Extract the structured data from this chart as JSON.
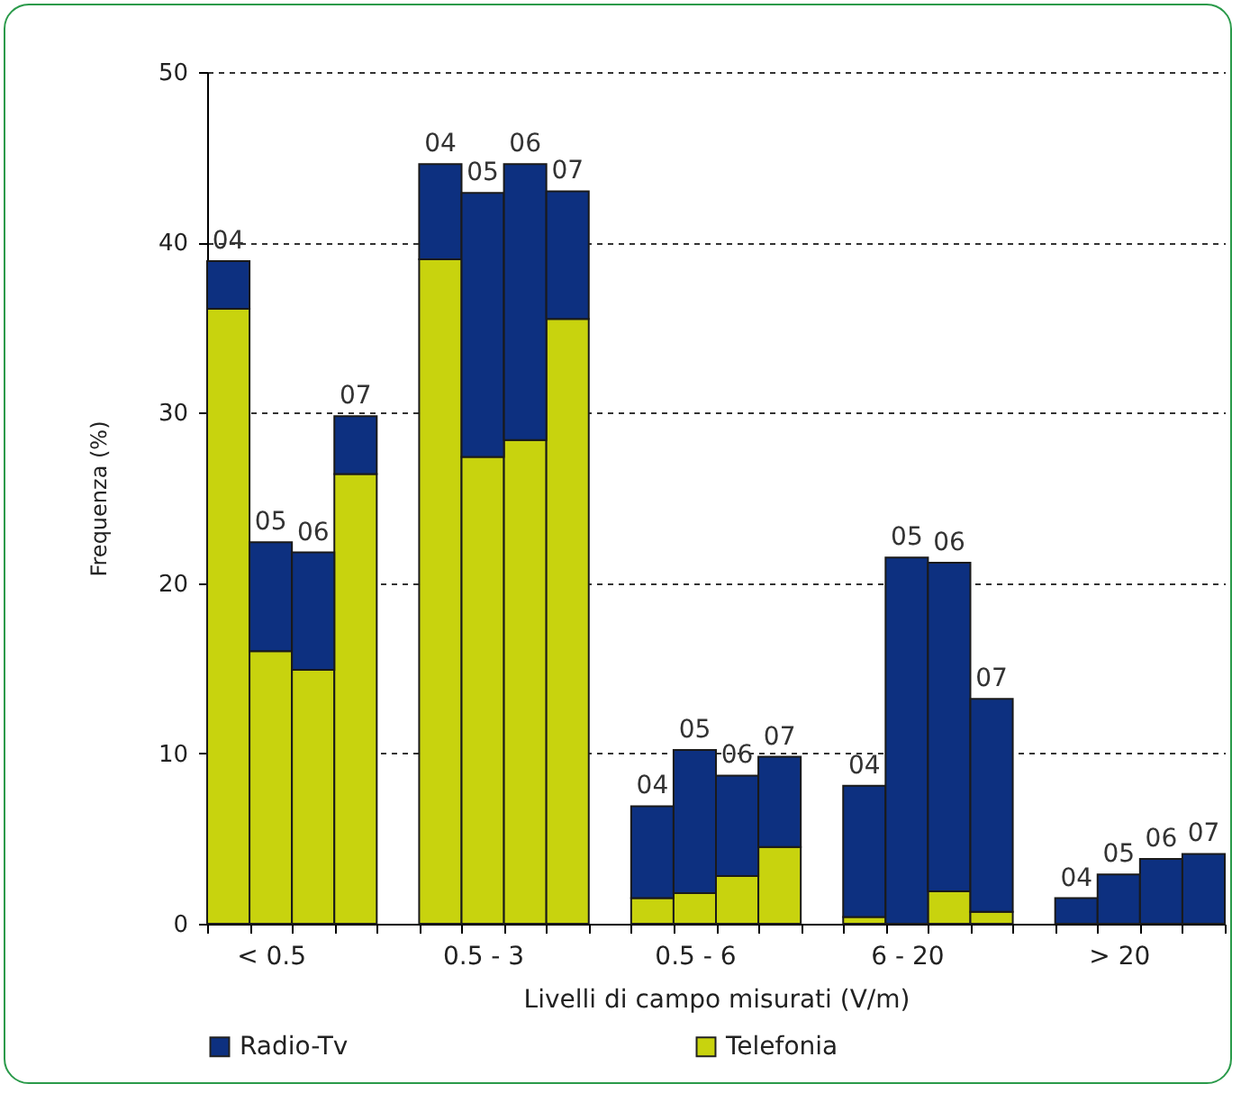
{
  "chart_data": {
    "type": "bar",
    "stacked": true,
    "xlabel": "Livelli di campo misurati (V/m)",
    "ylabel": "Frequenza (%)",
    "categories": [
      null,
      "< 0.5",
      null,
      null,
      null,
      null,
      "0.5  -  3",
      null,
      null,
      null,
      null,
      "0.5  -  6",
      null,
      null,
      null,
      null,
      "6   -  20",
      null,
      null,
      null,
      null,
      "> 20",
      null,
      null
    ],
    "series": [
      {
        "name": "Telefonia",
        "color": "#c8d30e",
        "values": [
          36.1,
          16.0,
          14.9,
          26.4,
          null,
          39.0,
          27.4,
          28.4,
          35.5,
          null,
          1.5,
          1.8,
          2.8,
          4.5,
          null,
          0.4,
          0,
          1.9,
          0.7,
          null,
          0,
          0,
          0,
          0
        ]
      },
      {
        "name": "Radio-Tv",
        "color": "#0d3080",
        "values": [
          2.8,
          6.4,
          6.9,
          3.4,
          null,
          5.6,
          15.5,
          16.2,
          7.5,
          null,
          5.4,
          8.4,
          5.9,
          5.3,
          null,
          7.7,
          21.5,
          19.3,
          12.5,
          null,
          1.5,
          2.9,
          3.8,
          4.1
        ]
      }
    ],
    "annotations": [
      "04",
      "05",
      "06",
      "07",
      "04",
      "05",
      "06",
      "07",
      "04",
      "05",
      "06",
      "07",
      "04",
      "05",
      "06",
      "07",
      "04",
      "05",
      "06",
      "07"
    ],
    "ylim": [
      0,
      50
    ],
    "yticks": [
      0,
      10,
      20,
      30,
      40,
      50
    ],
    "grid": "y",
    "legend": "bottom"
  }
}
